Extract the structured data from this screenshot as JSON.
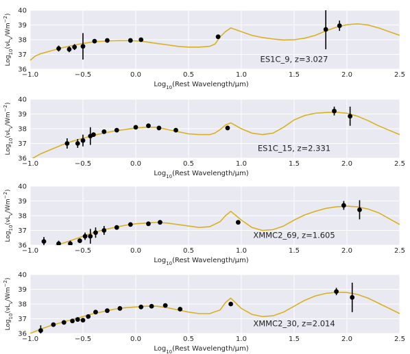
{
  "colors": {
    "plot_bg": "#e9e9f1",
    "grid": "#ffffff",
    "model_line": "#d9b01f",
    "points": "#000000"
  },
  "chart_data": [
    {
      "type": "scatter",
      "annotation": "ES1C_9, z=3.027",
      "xlabel": "Log10(Rest Wavelength/μm)",
      "ylabel": "Log10(νLν/Wm−2)",
      "xlim": [
        -1.0,
        2.5
      ],
      "ylim": [
        36,
        40
      ],
      "xticks": [
        -1.0,
        -0.5,
        0.0,
        0.5,
        1.0,
        1.5,
        2.0,
        2.5
      ],
      "xtick_labels": [
        "−1.0",
        "−0.5",
        "0.0",
        "0.5",
        "1.0",
        "1.5",
        "2.0",
        "2.5"
      ],
      "yticks": [
        36,
        37,
        38,
        39,
        40
      ],
      "ytick_labels": [
        "36",
        "37",
        "38",
        "39",
        "40"
      ],
      "points": [
        {
          "x": -0.73,
          "y": 37.4,
          "err": 0.2
        },
        {
          "x": -0.63,
          "y": 37.35,
          "err": 0.2
        },
        {
          "x": -0.58,
          "y": 37.5,
          "err": 0.2
        },
        {
          "x": -0.5,
          "y": 37.55,
          "err": 0.9
        },
        {
          "x": -0.39,
          "y": 37.9,
          "err": 0.1
        },
        {
          "x": -0.27,
          "y": 37.95,
          "err": 0.1
        },
        {
          "x": -0.05,
          "y": 37.95,
          "err": 0.1
        },
        {
          "x": 0.05,
          "y": 38.0,
          "err": 0.1
        },
        {
          "x": 0.78,
          "y": 38.2,
          "err": 0.1
        },
        {
          "x": 1.8,
          "y": 38.7,
          "err": 1.35
        },
        {
          "x": 1.93,
          "y": 38.95,
          "err": 0.35
        }
      ],
      "model": {
        "x": [
          -1.0,
          -0.95,
          -0.9,
          -0.85,
          -0.8,
          -0.75,
          -0.7,
          -0.65,
          -0.6,
          -0.55,
          -0.5,
          -0.45,
          -0.4,
          -0.35,
          -0.3,
          -0.25,
          -0.2,
          -0.15,
          -0.1,
          -0.05,
          0.0,
          0.05,
          0.1,
          0.2,
          0.3,
          0.4,
          0.5,
          0.6,
          0.7,
          0.75,
          0.8,
          0.85,
          0.9,
          1.0,
          1.1,
          1.2,
          1.3,
          1.4,
          1.5,
          1.6,
          1.7,
          1.8,
          1.9,
          2.0,
          2.1,
          2.2,
          2.3,
          2.4,
          2.5
        ],
        "y": [
          36.6,
          36.9,
          37.05,
          37.15,
          37.25,
          37.35,
          37.45,
          37.52,
          37.6,
          37.68,
          37.75,
          37.8,
          37.85,
          37.88,
          37.9,
          37.92,
          37.93,
          37.94,
          37.94,
          37.94,
          37.92,
          37.9,
          37.85,
          37.75,
          37.65,
          37.55,
          37.5,
          37.5,
          37.55,
          37.7,
          38.2,
          38.55,
          38.8,
          38.55,
          38.3,
          38.15,
          38.05,
          37.98,
          38.0,
          38.1,
          38.3,
          38.6,
          38.85,
          39.02,
          39.08,
          39.0,
          38.8,
          38.55,
          38.3
        ]
      }
    },
    {
      "type": "scatter",
      "annotation": "ES1C_15, z=2.331",
      "xlabel": "Log10(Rest Wavelength/μm)",
      "ylabel": "Log10(νLν/Wm−2)",
      "xlim": [
        -1.0,
        2.5
      ],
      "ylim": [
        36,
        40
      ],
      "xticks": [
        -1.0,
        -0.5,
        0.0,
        0.5,
        1.0,
        1.5,
        2.0,
        2.5
      ],
      "xtick_labels": [
        "−1.0",
        "−0.5",
        "0.0",
        "0.5",
        "1.0",
        "1.5",
        "2.0",
        "2.5"
      ],
      "yticks": [
        36,
        37,
        38,
        39,
        40
      ],
      "ytick_labels": [
        "36",
        "37",
        "38",
        "39",
        "40"
      ],
      "points": [
        {
          "x": -0.65,
          "y": 37.0,
          "err": 0.35
        },
        {
          "x": -0.55,
          "y": 37.0,
          "err": 0.3
        },
        {
          "x": -0.5,
          "y": 37.2,
          "err": 0.4
        },
        {
          "x": -0.43,
          "y": 37.5,
          "err": 0.6
        },
        {
          "x": -0.4,
          "y": 37.6,
          "err": 0.15
        },
        {
          "x": -0.3,
          "y": 37.8,
          "err": 0.1
        },
        {
          "x": -0.18,
          "y": 37.9,
          "err": 0.1
        },
        {
          "x": 0.0,
          "y": 38.1,
          "err": 0.1
        },
        {
          "x": 0.12,
          "y": 38.2,
          "err": 0.1
        },
        {
          "x": 0.22,
          "y": 38.05,
          "err": 0.1
        },
        {
          "x": 0.38,
          "y": 37.9,
          "err": 0.1
        },
        {
          "x": 0.87,
          "y": 38.05,
          "err": 0.1
        },
        {
          "x": 1.88,
          "y": 39.2,
          "err": 0.3
        },
        {
          "x": 2.03,
          "y": 38.85,
          "err": 0.65
        }
      ],
      "model": {
        "x": [
          -1.0,
          -0.9,
          -0.8,
          -0.7,
          -0.6,
          -0.5,
          -0.4,
          -0.3,
          -0.2,
          -0.1,
          0.0,
          0.1,
          0.2,
          0.3,
          0.4,
          0.5,
          0.6,
          0.7,
          0.75,
          0.8,
          0.85,
          0.9,
          1.0,
          1.1,
          1.2,
          1.3,
          1.4,
          1.5,
          1.6,
          1.7,
          1.8,
          1.9,
          2.0,
          2.1,
          2.2,
          2.3,
          2.4,
          2.5
        ],
        "y": [
          35.9,
          36.3,
          36.6,
          36.9,
          37.15,
          37.35,
          37.55,
          37.7,
          37.85,
          37.95,
          38.05,
          38.1,
          38.1,
          37.95,
          37.8,
          37.65,
          37.6,
          37.6,
          37.7,
          37.95,
          38.25,
          38.4,
          38.0,
          37.7,
          37.6,
          37.7,
          38.1,
          38.6,
          38.9,
          39.05,
          39.1,
          39.12,
          39.05,
          38.85,
          38.55,
          38.2,
          37.9,
          37.6
        ]
      }
    },
    {
      "type": "scatter",
      "annotation": "XMMC2_69, z=1.605",
      "xlabel": "Log10(Rest Wavelength/μm)",
      "ylabel": "Log10(νLν/Wm−2)",
      "xlim": [
        -1.0,
        2.5
      ],
      "ylim": [
        36,
        40
      ],
      "xticks": [
        -1.0,
        -0.5,
        0.0,
        0.5,
        1.0,
        1.5,
        2.0,
        2.5
      ],
      "xtick_labels": [
        "−1.0",
        "−0.5",
        "0.0",
        "0.5",
        "1.0",
        "1.5",
        "2.0",
        "2.5"
      ],
      "yticks": [
        36,
        37,
        38,
        39,
        40
      ],
      "ytick_labels": [
        "36",
        "37",
        "38",
        "39",
        "40"
      ],
      "points": [
        {
          "x": -0.87,
          "y": 36.25,
          "err": 0.3
        },
        {
          "x": -0.73,
          "y": 36.1,
          "err": 0.2
        },
        {
          "x": -0.62,
          "y": 36.1,
          "err": 0.2
        },
        {
          "x": -0.53,
          "y": 36.3,
          "err": 0.15
        },
        {
          "x": -0.48,
          "y": 36.6,
          "err": 0.25
        },
        {
          "x": -0.43,
          "y": 36.6,
          "err": 0.5
        },
        {
          "x": -0.38,
          "y": 36.85,
          "err": 0.35
        },
        {
          "x": -0.3,
          "y": 37.0,
          "err": 0.3
        },
        {
          "x": -0.18,
          "y": 37.2,
          "err": 0.15
        },
        {
          "x": -0.05,
          "y": 37.4,
          "err": 0.1
        },
        {
          "x": 0.12,
          "y": 37.45,
          "err": 0.1
        },
        {
          "x": 0.23,
          "y": 37.55,
          "err": 0.1
        },
        {
          "x": 0.97,
          "y": 37.55,
          "err": 0.1
        },
        {
          "x": 1.97,
          "y": 38.7,
          "err": 0.3
        },
        {
          "x": 2.12,
          "y": 38.4,
          "err": 0.65
        }
      ],
      "model": {
        "x": [
          -1.0,
          -0.9,
          -0.8,
          -0.7,
          -0.6,
          -0.5,
          -0.4,
          -0.3,
          -0.2,
          -0.1,
          0.0,
          0.1,
          0.2,
          0.3,
          0.4,
          0.5,
          0.6,
          0.7,
          0.8,
          0.85,
          0.9,
          1.0,
          1.1,
          1.2,
          1.3,
          1.4,
          1.5,
          1.6,
          1.7,
          1.8,
          1.9,
          2.0,
          2.1,
          2.2,
          2.3,
          2.4,
          2.5
        ],
        "y": [
          35.5,
          35.8,
          35.9,
          36.1,
          36.35,
          36.6,
          36.85,
          37.05,
          37.2,
          37.35,
          37.45,
          37.5,
          37.55,
          37.5,
          37.4,
          37.3,
          37.2,
          37.25,
          37.6,
          38.0,
          38.3,
          37.7,
          37.2,
          37.0,
          37.05,
          37.3,
          37.7,
          38.05,
          38.3,
          38.5,
          38.6,
          38.65,
          38.6,
          38.45,
          38.2,
          37.8,
          37.4
        ]
      }
    },
    {
      "type": "scatter",
      "annotation": "XMMC2_30, z=2.014",
      "xlabel": "Log10(Rest Wavelength/μm)",
      "ylabel": "Log10(νLν/Wm−2)",
      "xlim": [
        -1.0,
        2.5
      ],
      "ylim": [
        36,
        40
      ],
      "xticks": [
        -1.0,
        -0.5,
        0.0,
        0.5,
        1.0,
        1.5,
        2.0,
        2.5
      ],
      "xtick_labels": [
        "−1.0",
        "−0.5",
        "0.0",
        "0.5",
        "1.0",
        "1.5",
        "2.0",
        "2.5"
      ],
      "yticks": [
        36,
        37,
        38,
        39,
        40
      ],
      "ytick_labels": [
        "36",
        "37",
        "38",
        "39",
        "40"
      ],
      "points": [
        {
          "x": -0.9,
          "y": 36.2,
          "err": 0.35
        },
        {
          "x": -0.78,
          "y": 36.6,
          "err": 0.1
        },
        {
          "x": -0.68,
          "y": 36.75,
          "err": 0.1
        },
        {
          "x": -0.6,
          "y": 36.85,
          "err": 0.1
        },
        {
          "x": -0.55,
          "y": 36.95,
          "err": 0.1
        },
        {
          "x": -0.5,
          "y": 36.9,
          "err": 0.1
        },
        {
          "x": -0.45,
          "y": 37.15,
          "err": 0.1
        },
        {
          "x": -0.38,
          "y": 37.45,
          "err": 0.1
        },
        {
          "x": -0.27,
          "y": 37.55,
          "err": 0.1
        },
        {
          "x": -0.15,
          "y": 37.7,
          "err": 0.1
        },
        {
          "x": 0.05,
          "y": 37.8,
          "err": 0.1
        },
        {
          "x": 0.15,
          "y": 37.85,
          "err": 0.1
        },
        {
          "x": 0.28,
          "y": 37.9,
          "err": 0.1
        },
        {
          "x": 0.42,
          "y": 37.65,
          "err": 0.1
        },
        {
          "x": 0.9,
          "y": 38.0,
          "err": 0.1
        },
        {
          "x": 1.9,
          "y": 38.85,
          "err": 0.25
        },
        {
          "x": 2.05,
          "y": 38.45,
          "err": 1.0
        }
      ],
      "model": {
        "x": [
          -1.0,
          -0.9,
          -0.8,
          -0.7,
          -0.6,
          -0.5,
          -0.4,
          -0.3,
          -0.2,
          -0.1,
          0.0,
          0.1,
          0.2,
          0.3,
          0.4,
          0.5,
          0.6,
          0.7,
          0.8,
          0.85,
          0.9,
          1.0,
          1.1,
          1.2,
          1.3,
          1.4,
          1.5,
          1.6,
          1.7,
          1.8,
          1.9,
          2.0,
          2.1,
          2.2,
          2.3,
          2.4,
          2.5
        ],
        "y": [
          36.0,
          36.3,
          36.55,
          36.75,
          36.95,
          37.15,
          37.35,
          37.5,
          37.65,
          37.75,
          37.8,
          37.85,
          37.85,
          37.75,
          37.6,
          37.45,
          37.35,
          37.35,
          37.6,
          38.1,
          38.4,
          37.7,
          37.3,
          37.15,
          37.2,
          37.45,
          37.85,
          38.25,
          38.55,
          38.72,
          38.8,
          38.78,
          38.65,
          38.4,
          38.05,
          37.7,
          37.35
        ]
      }
    }
  ]
}
